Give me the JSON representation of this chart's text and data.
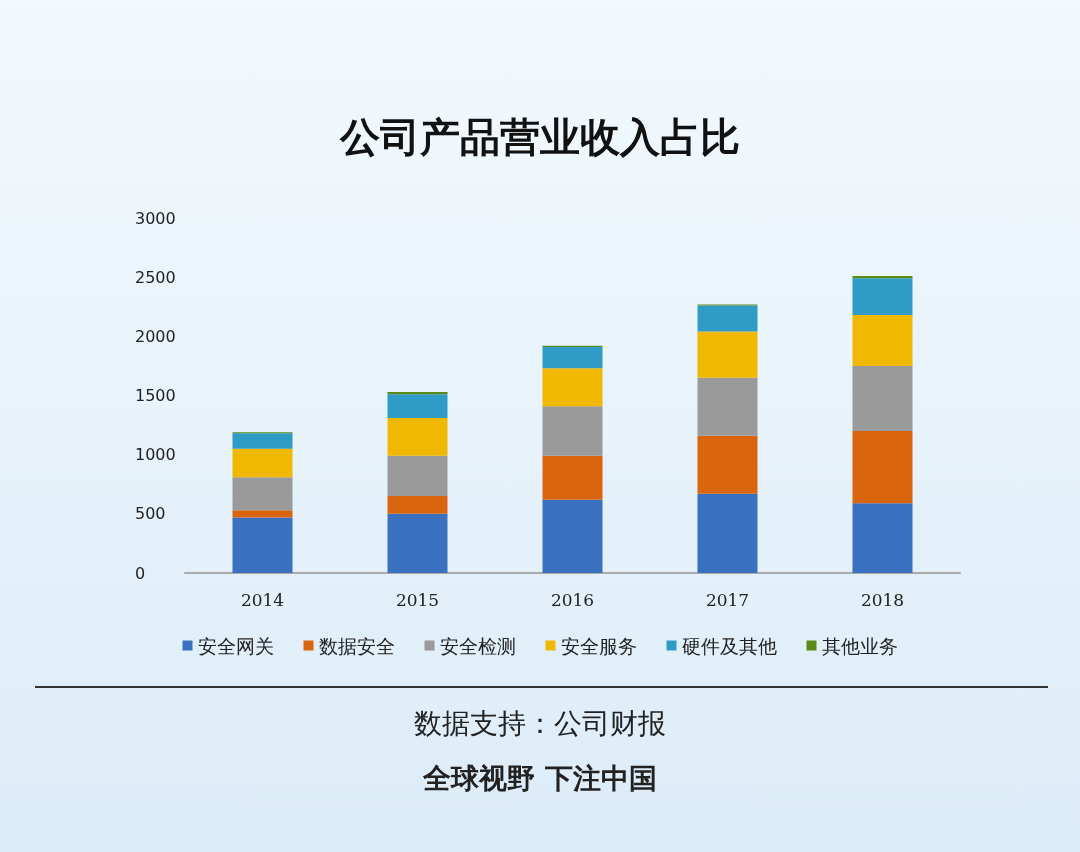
{
  "chart_data": {
    "type": "bar",
    "title": "公司产品营业收入占比",
    "categories": [
      "2014",
      "2015",
      "2016",
      "2017",
      "2018"
    ],
    "stacked": true,
    "series": [
      {
        "name": "安全网关",
        "color": "#3a70c0",
        "values": [
          470,
          500,
          620,
          670,
          590
        ]
      },
      {
        "name": "数据安全",
        "color": "#d9650e",
        "values": [
          60,
          150,
          370,
          490,
          610
        ]
      },
      {
        "name": "安全检测",
        "color": "#9a9a9a",
        "values": [
          280,
          340,
          420,
          490,
          550
        ]
      },
      {
        "name": "安全服务",
        "color": "#f0b800",
        "values": [
          240,
          320,
          320,
          390,
          430
        ]
      },
      {
        "name": "硬件及其他",
        "color": "#2f9cc8",
        "values": [
          130,
          200,
          180,
          220,
          310
        ]
      },
      {
        "name": "其他业务",
        "color": "#5a8a1a",
        "values": [
          10,
          20,
          10,
          10,
          20
        ]
      }
    ],
    "ylim": [
      0,
      3000
    ],
    "yticks": [
      0,
      500,
      1000,
      1500,
      2000,
      2500,
      3000
    ],
    "grid": false,
    "legend": "bottom",
    "annotations": [
      "数据支持：公司财报",
      "全球视野 下注中国"
    ]
  }
}
